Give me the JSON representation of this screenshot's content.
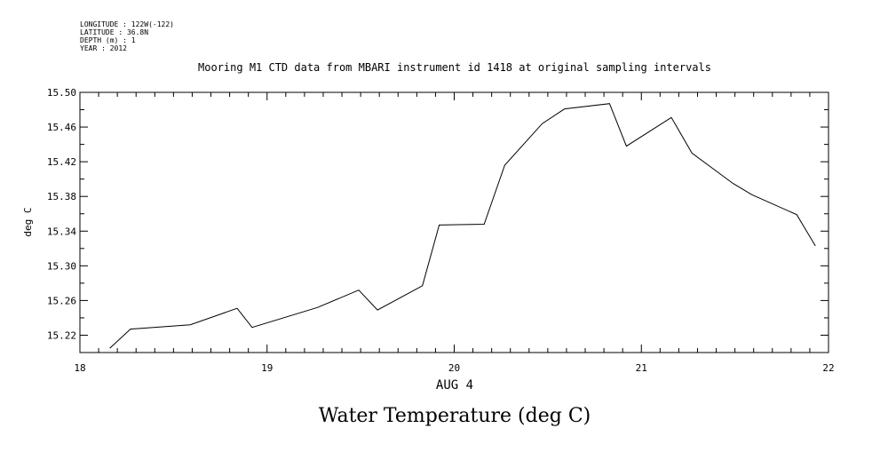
{
  "header": {
    "longitude": "LONGITUDE : 122W(-122)",
    "latitude": "LATITUDE : 36.8N",
    "depth": "DEPTH (m) : 1",
    "year": "YEAR : 2012"
  },
  "chart_data": {
    "type": "line",
    "title": "Water Temperature (deg C)",
    "subtitle": "Mooring M1 CTD data from MBARI instrument id 1418 at original sampling intervals",
    "xlabel": "AUG  4",
    "ylabel": "deg C",
    "xlim": [
      18,
      22
    ],
    "ylim": [
      15.2,
      15.5
    ],
    "x_ticks": [
      18,
      19,
      20,
      21,
      22
    ],
    "x_tick_labels": [
      "18",
      "19",
      "20",
      "21",
      "22"
    ],
    "y_ticks": [
      15.22,
      15.26,
      15.3,
      15.34,
      15.38,
      15.42,
      15.46,
      15.5
    ],
    "y_tick_labels": [
      "15.22",
      "15.26",
      "15.30",
      "15.34",
      "15.38",
      "15.42",
      "15.46",
      "15.50"
    ],
    "grid": false,
    "series": [
      {
        "x": [
          18.16,
          18.27,
          18.59,
          18.84,
          18.92,
          19.27,
          19.49,
          19.59,
          19.83,
          19.92,
          20.16,
          20.27,
          20.47,
          20.59,
          20.83,
          20.92,
          21.16,
          21.27,
          21.49,
          21.59,
          21.83,
          21.93
        ],
        "y": [
          15.205,
          15.227,
          15.232,
          15.251,
          15.229,
          15.252,
          15.272,
          15.249,
          15.277,
          15.347,
          15.348,
          15.416,
          15.464,
          15.481,
          15.487,
          15.438,
          15.471,
          15.43,
          15.395,
          15.382,
          15.359,
          15.323
        ]
      }
    ]
  }
}
